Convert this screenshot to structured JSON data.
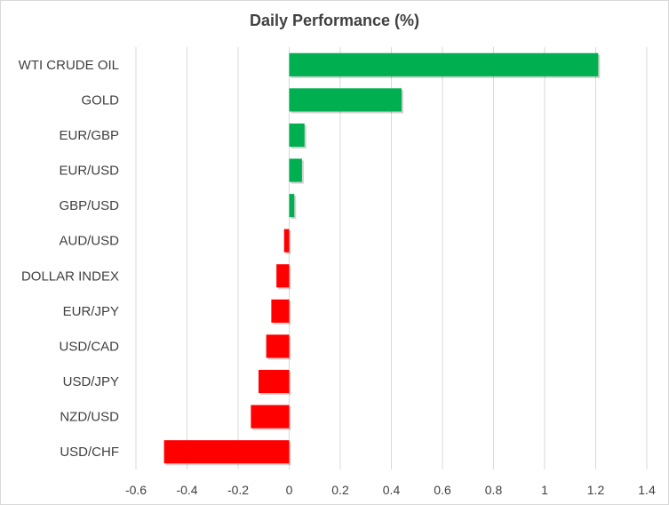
{
  "chart_data": {
    "type": "bar",
    "orientation": "horizontal",
    "title": "Daily Performance  (%)",
    "xlabel": "",
    "ylabel": "",
    "categories": [
      "WTI CRUDE OIL",
      "GOLD",
      "EUR/GBP",
      "EUR/USD",
      "GBP/USD",
      "AUD/USD",
      "DOLLAR INDEX",
      "EUR/JPY",
      "USD/CAD",
      "USD/JPY",
      "NZD/USD",
      "USD/CHF"
    ],
    "values": [
      1.21,
      0.44,
      0.06,
      0.05,
      0.02,
      -0.02,
      -0.05,
      -0.07,
      -0.09,
      -0.12,
      -0.15,
      -0.49
    ],
    "xlim": [
      -0.6,
      1.4
    ],
    "xticks": [
      "-0.6",
      "-0.4",
      "-0.2",
      "0",
      "0.2",
      "0.4",
      "0.6",
      "0.8",
      "1",
      "1.2",
      "1.4"
    ],
    "grid": "vertical",
    "legend": "none",
    "colors": {
      "positive": "#00b050",
      "negative": "#ff0000",
      "grid": "#d9d9d9",
      "text": "#404040"
    }
  }
}
